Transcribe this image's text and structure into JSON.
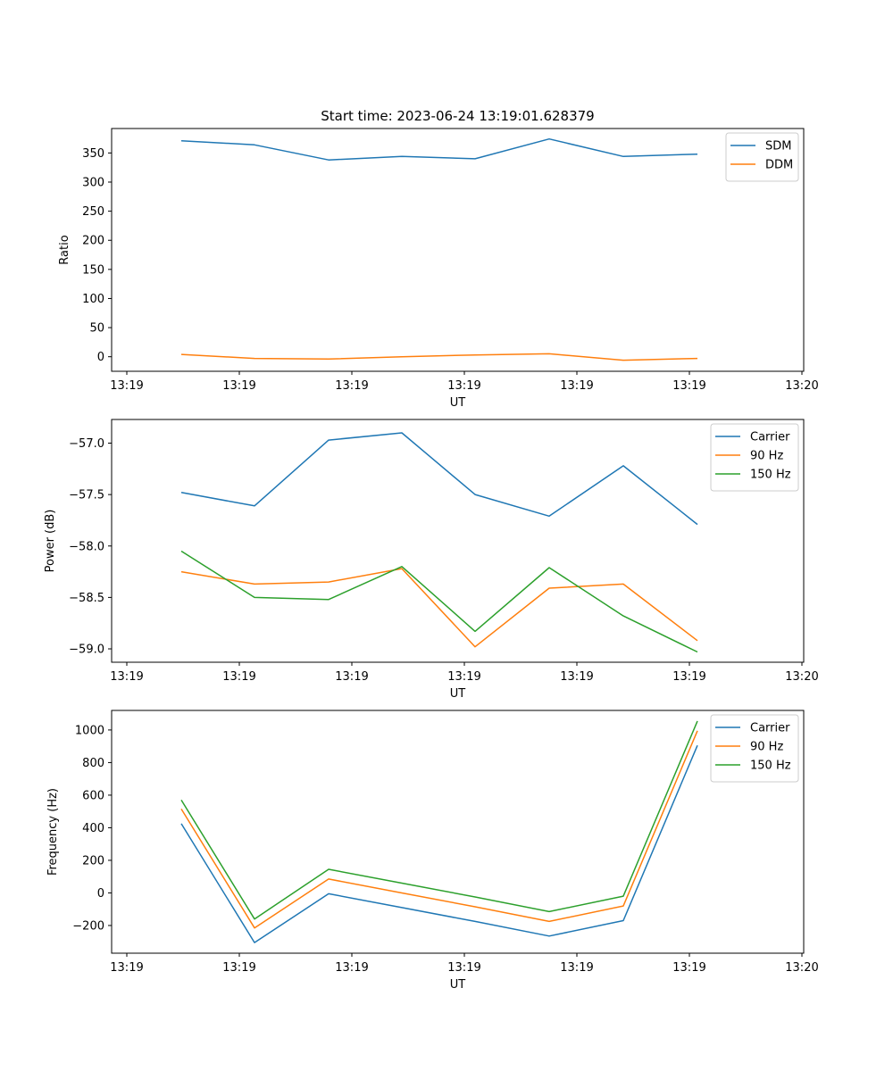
{
  "figure": {
    "title": "Start time: 2023-06-24 13:19:01.628379"
  },
  "chart_data": [
    {
      "type": "line",
      "xlabel": "UT",
      "ylabel": "Ratio",
      "x_tick_labels": [
        "13:19",
        "13:19",
        "13:19",
        "13:19",
        "13:19",
        "13:19",
        "13:20"
      ],
      "ylim": [
        -25,
        392
      ],
      "yticks": [
        0,
        50,
        100,
        150,
        200,
        250,
        300,
        350
      ],
      "y_tick_labels": [
        "0",
        "50",
        "100",
        "150",
        "200",
        "250",
        "300",
        "350"
      ],
      "legend_position": "top-right",
      "series": [
        {
          "name": "SDM",
          "color": "#1f77b4",
          "values": [
            371,
            364,
            338,
            344,
            340,
            374,
            344,
            348
          ]
        },
        {
          "name": "DDM",
          "color": "#ff7f0e",
          "values": [
            4,
            -3,
            -4,
            0,
            3,
            5,
            -6,
            -3
          ]
        }
      ]
    },
    {
      "type": "line",
      "xlabel": "UT",
      "ylabel": "Power (dB)",
      "x_tick_labels": [
        "13:19",
        "13:19",
        "13:19",
        "13:19",
        "13:19",
        "13:19",
        "13:20"
      ],
      "ylim": [
        -59.13,
        -56.77
      ],
      "yticks": [
        -59.0,
        -58.5,
        -58.0,
        -57.5,
        -57.0
      ],
      "y_tick_labels": [
        "−59.0",
        "−58.5",
        "−58.0",
        "−57.5",
        "−57.0"
      ],
      "legend_position": "top-right",
      "series": [
        {
          "name": "Carrier",
          "color": "#1f77b4",
          "values": [
            -57.48,
            -57.61,
            -56.97,
            -56.9,
            -57.5,
            -57.71,
            -57.22,
            -57.79
          ]
        },
        {
          "name": "90 Hz",
          "color": "#ff7f0e",
          "values": [
            -58.25,
            -58.37,
            -58.35,
            -58.22,
            -58.98,
            -58.41,
            -58.37,
            -58.92
          ]
        },
        {
          "name": "150 Hz",
          "color": "#2ca02c",
          "values": [
            -58.05,
            -58.5,
            -58.52,
            -58.2,
            -58.83,
            -58.21,
            -58.68,
            -59.03
          ]
        }
      ]
    },
    {
      "type": "line",
      "xlabel": "UT",
      "ylabel": "Frequency (Hz)",
      "x_tick_labels": [
        "13:19",
        "13:19",
        "13:19",
        "13:19",
        "13:19",
        "13:19",
        "13:20"
      ],
      "ylim": [
        -370,
        1120
      ],
      "yticks": [
        -200,
        0,
        200,
        400,
        600,
        800,
        1000
      ],
      "y_tick_labels": [
        "−200",
        "0",
        "200",
        "400",
        "600",
        "800",
        "1000"
      ],
      "legend_position": "top-right",
      "series": [
        {
          "name": "Carrier",
          "color": "#1f77b4",
          "values": [
            425,
            -305,
            -5,
            -90,
            -175,
            -265,
            -170,
            905
          ]
        },
        {
          "name": "90 Hz",
          "color": "#ff7f0e",
          "values": [
            515,
            -215,
            85,
            0,
            -85,
            -175,
            -80,
            995
          ]
        },
        {
          "name": "150 Hz",
          "color": "#2ca02c",
          "values": [
            570,
            -160,
            145,
            60,
            -25,
            -115,
            -20,
            1055
          ]
        }
      ]
    }
  ]
}
